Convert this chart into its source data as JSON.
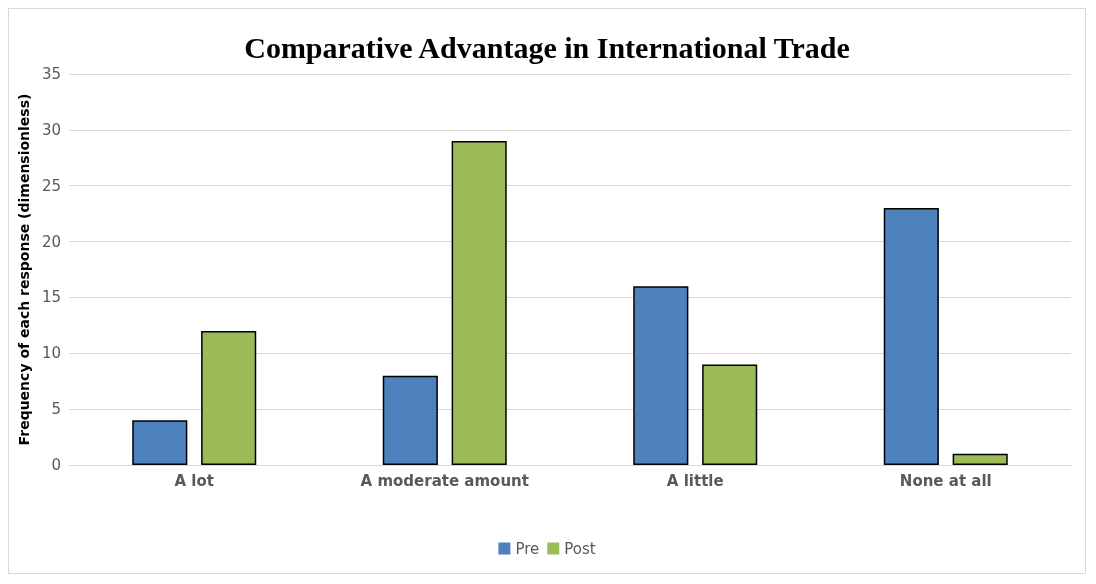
{
  "chart_data": {
    "type": "bar",
    "title": "Comparative Advantage in International Trade",
    "ylabel": "Frequency of each response (dimensionless)",
    "categories": [
      "A lot",
      "A moderate amount",
      "A little",
      "None at all"
    ],
    "series": [
      {
        "name": "Pre",
        "color": "#4f81bd",
        "values": [
          4,
          8,
          16,
          23
        ]
      },
      {
        "name": "Post",
        "color": "#9bbb59",
        "values": [
          12,
          29,
          9,
          1
        ]
      }
    ],
    "ylim": [
      0,
      35
    ],
    "yticks": [
      0,
      5,
      10,
      15,
      20,
      25,
      30,
      35
    ],
    "grid": "y",
    "legend": "bottom"
  }
}
